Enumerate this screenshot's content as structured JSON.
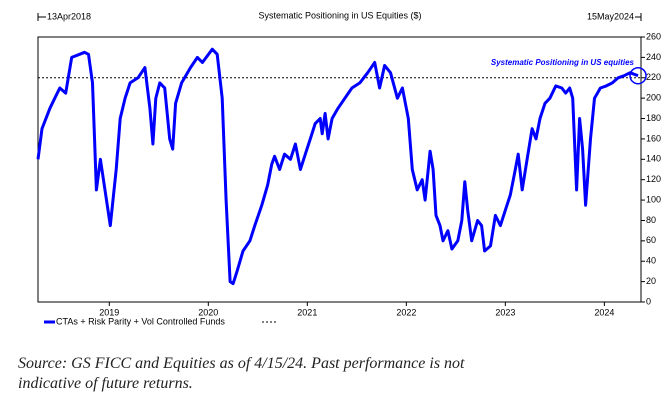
{
  "chart_data": {
    "type": "line",
    "title": "Systematic Positioning in US Equities ($)",
    "start_label": "13Apr2018",
    "end_label": "15May2024",
    "annotation": "Systematic Positioning in US equities",
    "reference_value": 220,
    "source": "Source: GS FICC and Equities as of 4/15/24. Past performance is not indicative of future returns.",
    "xlim": [
      2018.28,
      2024.37
    ],
    "xticks": [
      2019,
      2020,
      2021,
      2022,
      2023,
      2024
    ],
    "ylim": [
      0,
      260
    ],
    "yticks": [
      0,
      20,
      40,
      60,
      80,
      100,
      120,
      140,
      160,
      180,
      200,
      220,
      240,
      260
    ],
    "series": [
      {
        "name": "CTAs + Risk Parity + Vol Controlled Funds",
        "color": "#0000ff",
        "x": [
          2018.28,
          2018.32,
          2018.4,
          2018.45,
          2018.5,
          2018.56,
          2018.62,
          2018.7,
          2018.75,
          2018.79,
          2018.83,
          2018.87,
          2018.91,
          2019.01,
          2019.07,
          2019.11,
          2019.16,
          2019.21,
          2019.29,
          2019.36,
          2019.41,
          2019.44,
          2019.47,
          2019.51,
          2019.56,
          2019.61,
          2019.64,
          2019.67,
          2019.73,
          2019.82,
          2019.89,
          2019.94,
          2020.04,
          2020.09,
          2020.14,
          2020.18,
          2020.22,
          2020.25,
          2020.29,
          2020.35,
          2020.42,
          2020.47,
          2020.54,
          2020.6,
          2020.64,
          2020.67,
          2020.72,
          2020.77,
          2020.83,
          2020.88,
          2020.93,
          2020.98,
          2021.03,
          2021.08,
          2021.13,
          2021.15,
          2021.18,
          2021.21,
          2021.25,
          2021.31,
          2021.38,
          2021.45,
          2021.53,
          2021.61,
          2021.68,
          2021.73,
          2021.78,
          2021.84,
          2021.91,
          2021.96,
          2022.02,
          2022.06,
          2022.11,
          2022.16,
          2022.19,
          2022.24,
          2022.27,
          2022.3,
          2022.34,
          2022.37,
          2022.42,
          2022.46,
          2022.52,
          2022.56,
          2022.59,
          2022.62,
          2022.66,
          2022.72,
          2022.76,
          2022.79,
          2022.85,
          2022.9,
          2022.95,
          2023.0,
          2023.05,
          2023.1,
          2023.13,
          2023.17,
          2023.22,
          2023.27,
          2023.31,
          2023.35,
          2023.4,
          2023.45,
          2023.51,
          2023.57,
          2023.61,
          2023.65,
          2023.68,
          2023.72,
          2023.75,
          2023.78,
          2023.81,
          2023.86,
          2023.9,
          2023.96,
          2024.02,
          2024.08,
          2024.14,
          2024.2,
          2024.26,
          2024.34
        ],
        "values": [
          140,
          170,
          190,
          200,
          210,
          205,
          240,
          243,
          245,
          243,
          215,
          110,
          140,
          75,
          130,
          180,
          200,
          215,
          220,
          230,
          190,
          155,
          200,
          215,
          210,
          160,
          150,
          195,
          215,
          230,
          240,
          235,
          248,
          243,
          200,
          100,
          20,
          18,
          30,
          50,
          60,
          75,
          95,
          115,
          135,
          143,
          130,
          145,
          140,
          155,
          130,
          145,
          160,
          175,
          180,
          165,
          185,
          160,
          180,
          190,
          200,
          210,
          215,
          225,
          235,
          210,
          232,
          225,
          200,
          210,
          180,
          130,
          110,
          120,
          100,
          148,
          130,
          85,
          75,
          60,
          70,
          52,
          60,
          80,
          118,
          90,
          60,
          80,
          75,
          50,
          55,
          85,
          75,
          90,
          105,
          130,
          145,
          110,
          140,
          170,
          160,
          180,
          195,
          200,
          212,
          210,
          205,
          210,
          200,
          110,
          180,
          150,
          95,
          160,
          200,
          210,
          212,
          215,
          220,
          222,
          225,
          222
        ]
      }
    ]
  }
}
